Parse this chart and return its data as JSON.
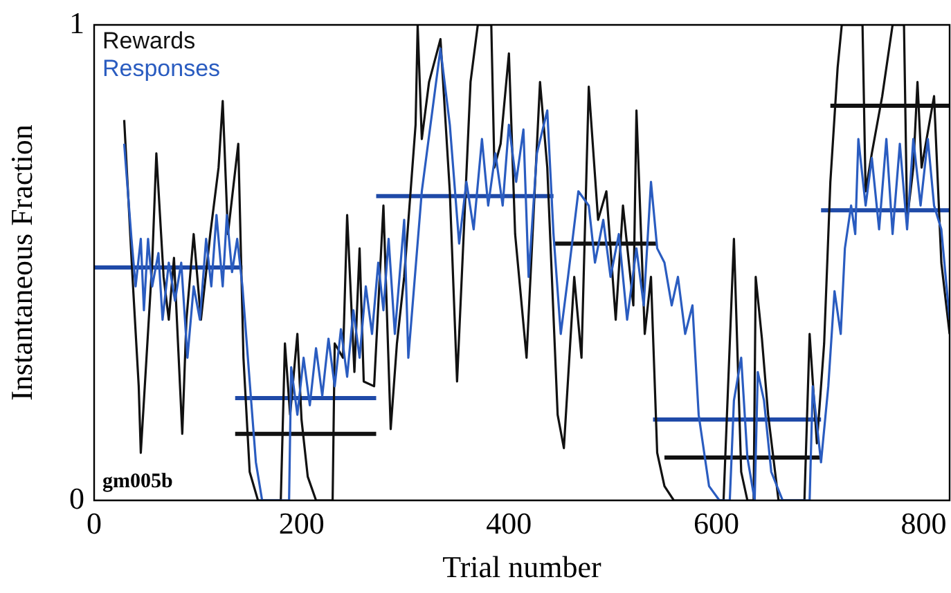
{
  "chart_data": {
    "type": "line",
    "xlabel": "Trial number",
    "ylabel": "Instantaneous Fraction",
    "xlim": [
      0,
      825
    ],
    "xticks": [
      0,
      200,
      400,
      600,
      800
    ],
    "ylim": [
      0,
      1
    ],
    "yticks": [
      0,
      1
    ],
    "grid": false,
    "legend": "top left",
    "marker": "none",
    "annotations": [
      "gm005b"
    ],
    "series": [
      {
        "name": "Rewards",
        "color": "#111111",
        "x": [
          29,
          37,
          43,
          45,
          56,
          60,
          67,
          72,
          77,
          85,
          89,
          96,
          103,
          112,
          120,
          124,
          129,
          139,
          144,
          150,
          158,
          180,
          184,
          189,
          196,
          200,
          206,
          214,
          230,
          232,
          240,
          244,
          251,
          256,
          260,
          270,
          279,
          286,
          292,
          299,
          310,
          312,
          316,
          323,
          334,
          343,
          350,
          363,
          370,
          383,
          386,
          392,
          400,
          406,
          417,
          430,
          437,
          447,
          453,
          463,
          470,
          477,
          486,
          494,
          503,
          510,
          520,
          523,
          531,
          537,
          543,
          550,
          559,
          607,
          617,
          624,
          630,
          636,
          638,
          644,
          650,
          660,
          685,
          690,
          697,
          704,
          710,
          717,
          721,
          741,
          744,
          750,
          760,
          770,
          781,
          784,
          790,
          794,
          798,
          810,
          817,
          825
        ],
        "values": [
          0.8,
          0.47,
          0.24,
          0.1,
          0.5,
          0.73,
          0.47,
          0.38,
          0.51,
          0.14,
          0.38,
          0.56,
          0.38,
          0.56,
          0.7,
          0.84,
          0.56,
          0.75,
          0.3,
          0.06,
          0,
          0,
          0.33,
          0.18,
          0.35,
          0.17,
          0.05,
          0,
          0,
          0.33,
          0.3,
          0.6,
          0.27,
          0.53,
          0.25,
          0.24,
          0.62,
          0.15,
          0.33,
          0.47,
          0.79,
          1,
          0.76,
          0.88,
          0.97,
          0.65,
          0.25,
          0.88,
          1,
          1,
          0.7,
          0.75,
          0.94,
          0.56,
          0.3,
          0.88,
          0.7,
          0.18,
          0.11,
          0.47,
          0.3,
          0.87,
          0.59,
          0.65,
          0.38,
          0.62,
          0.41,
          0.82,
          0.35,
          0.47,
          0.1,
          0.03,
          0,
          0,
          0.55,
          0.06,
          0,
          0,
          0.47,
          0.34,
          0.18,
          0,
          0,
          0.35,
          0.12,
          0.33,
          0.67,
          0.91,
          1,
          1,
          0.65,
          0.73,
          0.85,
          1,
          1,
          0.59,
          0.7,
          0.88,
          0.7,
          0.85,
          0.5,
          0.35
        ]
      },
      {
        "name": "Responses",
        "color": "#2a5cc0",
        "x": [
          29,
          36,
          40,
          45,
          48,
          52,
          56,
          62,
          66,
          72,
          78,
          84,
          90,
          96,
          102,
          108,
          113,
          118,
          124,
          128,
          133,
          138,
          143,
          150,
          156,
          162,
          188,
          190,
          196,
          202,
          208,
          214,
          220,
          226,
          232,
          238,
          244,
          250,
          256,
          262,
          268,
          274,
          279,
          284,
          290,
          299,
          303,
          316,
          334,
          343,
          352,
          359,
          366,
          374,
          380,
          387,
          394,
          400,
          407,
          414,
          419,
          427,
          437,
          443,
          450,
          457,
          467,
          477,
          483,
          491,
          498,
          506,
          514,
          523,
          530,
          537,
          543,
          550,
          557,
          563,
          570,
          577,
          583,
          593,
          603,
          613,
          617,
          624,
          630,
          637,
          640,
          646,
          653,
          664,
          690,
          693,
          701,
          708,
          714,
          720,
          724,
          730,
          734,
          737,
          744,
          750,
          757,
          764,
          770,
          777,
          784,
          790,
          797,
          804,
          810,
          817,
          825
        ],
        "values": [
          0.75,
          0.55,
          0.45,
          0.55,
          0.4,
          0.55,
          0.45,
          0.52,
          0.38,
          0.5,
          0.42,
          0.5,
          0.3,
          0.45,
          0.38,
          0.55,
          0.45,
          0.6,
          0.45,
          0.6,
          0.48,
          0.55,
          0.45,
          0.25,
          0.08,
          0,
          0,
          0.28,
          0.18,
          0.3,
          0.2,
          0.32,
          0.22,
          0.34,
          0.24,
          0.36,
          0.26,
          0.4,
          0.3,
          0.45,
          0.35,
          0.5,
          0.4,
          0.55,
          0.35,
          0.59,
          0.3,
          0.65,
          0.95,
          0.79,
          0.54,
          0.67,
          0.57,
          0.76,
          0.62,
          0.73,
          0.62,
          0.79,
          0.67,
          0.78,
          0.47,
          0.73,
          0.82,
          0.56,
          0.35,
          0.47,
          0.65,
          0.62,
          0.5,
          0.59,
          0.47,
          0.56,
          0.38,
          0.53,
          0.41,
          0.67,
          0.53,
          0.5,
          0.41,
          0.47,
          0.35,
          0.41,
          0.18,
          0.03,
          0,
          0,
          0.21,
          0.3,
          0.09,
          0,
          0.27,
          0.21,
          0.06,
          0,
          0,
          0.24,
          0.08,
          0.24,
          0.44,
          0.35,
          0.53,
          0.62,
          0.56,
          0.76,
          0.62,
          0.72,
          0.57,
          0.76,
          0.56,
          0.75,
          0.57,
          0.76,
          0.62,
          0.76,
          0.62,
          0.57,
          0.38
        ]
      },
      {
        "color": "#111111",
        "x": [
          136,
          272
        ],
        "values": [
          0.14,
          0.14
        ]
      },
      {
        "color": "#111111",
        "x": [
          443,
          543
        ],
        "values": [
          0.54,
          0.54
        ]
      },
      {
        "color": "#111111",
        "x": [
          550,
          701
        ],
        "values": [
          0.09,
          0.09
        ]
      },
      {
        "color": "#111111",
        "x": [
          710,
          825
        ],
        "values": [
          0.83,
          0.83
        ]
      },
      {
        "color": "#1f4aa8",
        "x": [
          0,
          143
        ],
        "values": [
          0.49,
          0.49
        ]
      },
      {
        "color": "#1f4aa8",
        "x": [
          136,
          272
        ],
        "values": [
          0.215,
          0.215
        ]
      },
      {
        "color": "#1f4aa8",
        "x": [
          272,
          443
        ],
        "values": [
          0.64,
          0.64
        ]
      },
      {
        "color": "#1f4aa8",
        "x": [
          539,
          701
        ],
        "values": [
          0.17,
          0.17
        ]
      },
      {
        "color": "#1f4aa8",
        "x": [
          701,
          825
        ],
        "values": [
          0.61,
          0.61
        ]
      }
    ]
  }
}
